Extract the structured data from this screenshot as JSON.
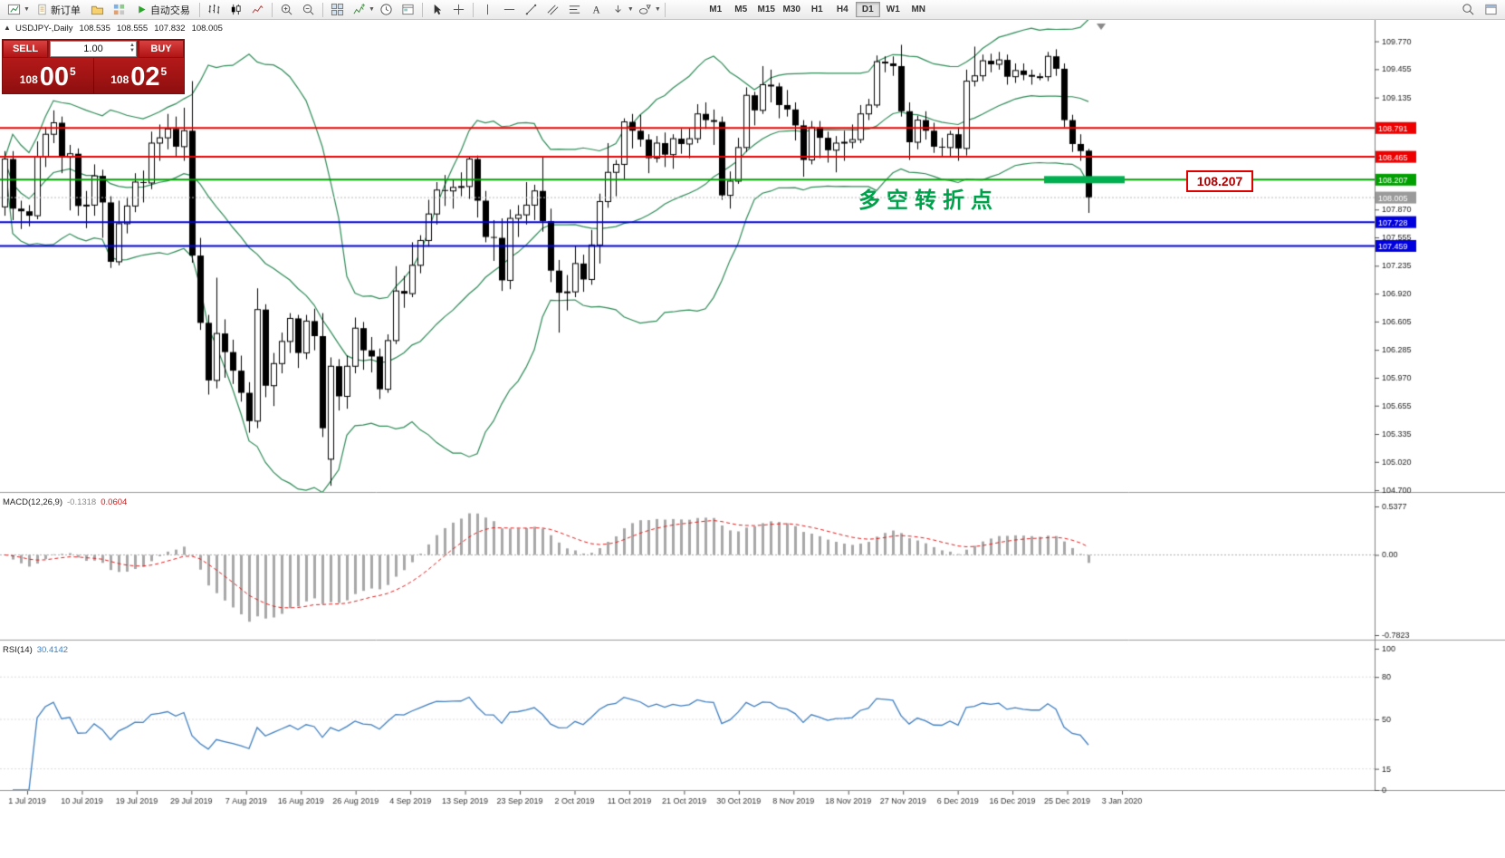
{
  "toolbar": {
    "new_order_label": "新订单",
    "autotrade_label": "自动交易",
    "timeframes": [
      "M1",
      "M5",
      "M15",
      "M30",
      "H1",
      "H4",
      "D1",
      "W1",
      "MN"
    ],
    "active_timeframe": "D1"
  },
  "chart_header": {
    "symbol": "USDJPY-,Daily",
    "open": "108.535",
    "high": "108.555",
    "low": "107.832",
    "close": "108.005"
  },
  "trade_panel": {
    "sell_label": "SELL",
    "buy_label": "BUY",
    "volume": "1.00",
    "sell_price": {
      "prefix": "108",
      "big": "00",
      "sup": "5"
    },
    "buy_price": {
      "prefix": "108",
      "big": "02",
      "sup": "5"
    }
  },
  "annotations": {
    "pivot_text": "多空转折点",
    "price_callout": "108.207"
  },
  "chart_data": {
    "type": "candlestick",
    "symbol": "USDJPY-",
    "timeframe": "Daily",
    "price_range": {
      "max": 109.95,
      "min": 104.68
    },
    "price_axis_ticks": [
      "109.770",
      "109.455",
      "109.135",
      "107.870",
      "107.555",
      "107.235",
      "106.920",
      "106.605",
      "106.285",
      "105.970",
      "105.655",
      "105.335",
      "105.020",
      "104.700"
    ],
    "levels": [
      {
        "price": 108.791,
        "label": "108.791",
        "color": "#ee0000",
        "width": 2
      },
      {
        "price": 108.465,
        "label": "108.465",
        "color": "#ee0000",
        "width": 2
      },
      {
        "price": 108.207,
        "label": "108.207",
        "color": "#00a000",
        "width": 2
      },
      {
        "price": 107.728,
        "label": "107.728",
        "color": "#0000dd",
        "width": 2
      },
      {
        "price": 107.459,
        "label": "107.459",
        "color": "#0000dd",
        "width": 2
      }
    ],
    "bid_line": {
      "price": 108.005,
      "label": "108.005",
      "color": "#9a9a9a"
    },
    "highlight_bar": {
      "price": 108.207,
      "start_index": 128,
      "end_index": 137,
      "color": "#00b050",
      "thickness": 8
    },
    "bollinger": {
      "period": 20,
      "deviation": 2
    },
    "styles": {
      "bollinger": "#2e8b57",
      "candle_up": "#ffffff",
      "candle_down": "#000000",
      "candle_border": "#000000",
      "macd_histogram": "#a8a8a8",
      "macd_signal": "#e02020",
      "rsi_line": "#3f7fc1"
    },
    "indicators": {
      "macd": {
        "label": "MACD(12,26,9)",
        "value": "-0.1318",
        "signal": "0.0604",
        "scale_max": "0.5377",
        "scale_zero": "0.00",
        "scale_min": "-0.7823",
        "range": {
          "max": 0.6,
          "min": -0.82
        }
      },
      "rsi": {
        "label": "RSI(14)",
        "value": "30.4142",
        "levels": [
          "100",
          "80",
          "50",
          "15",
          "0"
        ]
      }
    },
    "date_labels": [
      "1 Jul 2019",
      "10 Jul 2019",
      "19 Jul 2019",
      "29 Jul 2019",
      "7 Aug 2019",
      "16 Aug 2019",
      "26 Aug 2019",
      "4 Sep 2019",
      "13 Sep 2019",
      "23 Sep 2019",
      "2 Oct 2019",
      "11 Oct 2019",
      "21 Oct 2019",
      "30 Oct 2019",
      "8 Nov 2019",
      "18 Nov 2019",
      "27 Nov 2019",
      "6 Dec 2019",
      "16 Dec 2019",
      "25 Dec 2019",
      "3 Jan 2020"
    ],
    "candles": [
      [
        107.9,
        108.53,
        107.8,
        108.44
      ],
      [
        108.44,
        108.53,
        107.75,
        107.88
      ],
      [
        107.88,
        107.97,
        107.65,
        107.85
      ],
      [
        107.85,
        107.92,
        107.68,
        107.8
      ],
      [
        107.8,
        108.64,
        107.76,
        108.47
      ],
      [
        108.47,
        108.8,
        108.35,
        108.72
      ],
      [
        108.72,
        108.99,
        108.62,
        108.85
      ],
      [
        108.85,
        108.92,
        108.28,
        108.46
      ],
      [
        108.46,
        108.6,
        107.86,
        108.5
      ],
      [
        108.5,
        108.56,
        107.8,
        107.91
      ],
      [
        107.91,
        108.08,
        107.66,
        107.92
      ],
      [
        107.92,
        108.38,
        107.8,
        108.25
      ],
      [
        108.25,
        108.32,
        107.55,
        107.95
      ],
      [
        107.95,
        108.02,
        107.21,
        107.28
      ],
      [
        107.28,
        107.97,
        107.24,
        107.71
      ],
      [
        107.71,
        108.01,
        107.6,
        107.91
      ],
      [
        107.91,
        108.28,
        107.84,
        108.18
      ],
      [
        108.18,
        108.31,
        107.95,
        108.17
      ],
      [
        108.17,
        108.75,
        108.1,
        108.62
      ],
      [
        108.62,
        108.83,
        108.42,
        108.68
      ],
      [
        108.68,
        108.95,
        108.55,
        108.78
      ],
      [
        108.78,
        108.92,
        108.46,
        108.58
      ],
      [
        108.58,
        109.02,
        108.42,
        108.76
      ],
      [
        108.76,
        109.32,
        107.27,
        107.35
      ],
      [
        107.35,
        107.55,
        106.51,
        106.59
      ],
      [
        106.59,
        106.68,
        105.78,
        105.94
      ],
      [
        105.94,
        107.1,
        105.85,
        106.47
      ],
      [
        106.47,
        106.63,
        105.97,
        106.26
      ],
      [
        106.26,
        106.4,
        105.9,
        106.05
      ],
      [
        106.05,
        106.22,
        105.7,
        105.8
      ],
      [
        105.8,
        105.92,
        105.35,
        105.48
      ],
      [
        105.48,
        106.98,
        105.4,
        106.74
      ],
      [
        106.74,
        106.8,
        105.75,
        105.88
      ],
      [
        105.88,
        106.25,
        105.65,
        106.13
      ],
      [
        106.13,
        106.48,
        106.02,
        106.38
      ],
      [
        106.38,
        106.7,
        106.25,
        106.64
      ],
      [
        106.64,
        106.68,
        106.08,
        106.25
      ],
      [
        106.25,
        106.68,
        106.18,
        106.61
      ],
      [
        106.61,
        106.75,
        106.28,
        106.44
      ],
      [
        106.44,
        106.7,
        105.3,
        105.4
      ],
      [
        105.05,
        106.2,
        104.75,
        106.1
      ],
      [
        106.1,
        106.18,
        105.6,
        105.76
      ],
      [
        105.76,
        106.22,
        105.62,
        106.1
      ],
      [
        106.1,
        106.65,
        106.02,
        106.53
      ],
      [
        106.53,
        106.6,
        106.06,
        106.28
      ],
      [
        106.28,
        106.43,
        106.03,
        106.21
      ],
      [
        106.21,
        106.3,
        105.73,
        105.84
      ],
      [
        105.84,
        106.46,
        105.8,
        106.39
      ],
      [
        106.39,
        107.23,
        106.35,
        106.95
      ],
      [
        106.95,
        107.12,
        106.76,
        106.92
      ],
      [
        106.92,
        107.5,
        106.88,
        107.24
      ],
      [
        107.24,
        107.58,
        107.15,
        107.52
      ],
      [
        107.52,
        107.98,
        107.45,
        107.82
      ],
      [
        107.82,
        108.18,
        107.7,
        108.09
      ],
      [
        108.09,
        108.26,
        107.91,
        108.08
      ],
      [
        108.08,
        108.2,
        107.88,
        108.12
      ],
      [
        108.12,
        108.29,
        108.02,
        108.13
      ],
      [
        108.13,
        108.47,
        107.99,
        108.44
      ],
      [
        108.44,
        108.48,
        107.78,
        107.97
      ],
      [
        107.97,
        108.08,
        107.5,
        107.56
      ],
      [
        107.56,
        107.75,
        107.29,
        107.55
      ],
      [
        107.55,
        107.77,
        106.95,
        107.07
      ],
      [
        107.07,
        107.87,
        106.97,
        107.77
      ],
      [
        107.77,
        107.92,
        107.56,
        107.81
      ],
      [
        107.81,
        108.18,
        107.7,
        107.92
      ],
      [
        107.92,
        108.15,
        107.75,
        108.08
      ],
      [
        108.08,
        108.47,
        107.62,
        107.74
      ],
      [
        107.74,
        107.88,
        107.05,
        107.18
      ],
      [
        107.18,
        107.3,
        106.48,
        106.93
      ],
      [
        106.93,
        107.13,
        106.73,
        106.94
      ],
      [
        106.94,
        107.46,
        106.88,
        107.26
      ],
      [
        107.26,
        107.36,
        106.94,
        107.08
      ],
      [
        107.08,
        107.64,
        107.02,
        107.47
      ],
      [
        107.47,
        108.05,
        107.26,
        107.96
      ],
      [
        107.96,
        108.62,
        107.89,
        108.29
      ],
      [
        108.29,
        108.43,
        108.02,
        108.38
      ],
      [
        108.38,
        108.9,
        108.2,
        108.86
      ],
      [
        108.86,
        108.95,
        108.56,
        108.76
      ],
      [
        108.76,
        108.94,
        108.58,
        108.66
      ],
      [
        108.66,
        108.72,
        108.28,
        108.45
      ],
      [
        108.45,
        108.7,
        108.4,
        108.62
      ],
      [
        108.62,
        108.74,
        108.35,
        108.49
      ],
      [
        108.49,
        108.72,
        108.33,
        108.67
      ],
      [
        108.67,
        108.78,
        108.5,
        108.61
      ],
      [
        108.61,
        108.79,
        108.45,
        108.67
      ],
      [
        108.67,
        109.06,
        108.62,
        108.95
      ],
      [
        108.95,
        109.08,
        108.78,
        108.88
      ],
      [
        108.88,
        109.0,
        108.6,
        108.86
      ],
      [
        108.86,
        108.92,
        107.98,
        108.03
      ],
      [
        108.03,
        108.3,
        107.88,
        108.19
      ],
      [
        108.19,
        108.68,
        108.16,
        108.57
      ],
      [
        108.57,
        109.25,
        108.52,
        109.16
      ],
      [
        109.16,
        109.2,
        108.82,
        108.99
      ],
      [
        108.99,
        109.49,
        108.95,
        109.28
      ],
      [
        109.28,
        109.45,
        109.08,
        109.26
      ],
      [
        109.26,
        109.3,
        108.9,
        109.05
      ],
      [
        109.05,
        109.22,
        108.92,
        109.0
      ],
      [
        109.0,
        109.08,
        108.65,
        108.82
      ],
      [
        108.82,
        108.88,
        108.24,
        108.43
      ],
      [
        108.43,
        108.87,
        108.38,
        108.8
      ],
      [
        108.8,
        108.87,
        108.45,
        108.68
      ],
      [
        108.68,
        108.75,
        108.4,
        108.54
      ],
      [
        108.54,
        108.7,
        108.29,
        108.62
      ],
      [
        108.62,
        108.76,
        108.42,
        108.63
      ],
      [
        108.63,
        108.83,
        108.56,
        108.66
      ],
      [
        108.66,
        109.05,
        108.62,
        108.95
      ],
      [
        108.95,
        109.12,
        108.88,
        109.05
      ],
      [
        109.05,
        109.61,
        109.02,
        109.54
      ],
      [
        109.54,
        109.6,
        109.42,
        109.52
      ],
      [
        109.52,
        109.6,
        109.38,
        109.49
      ],
      [
        109.49,
        109.73,
        108.92,
        108.98
      ],
      [
        108.98,
        109.08,
        108.43,
        108.63
      ],
      [
        108.63,
        108.93,
        108.55,
        108.88
      ],
      [
        108.88,
        108.98,
        108.66,
        108.76
      ],
      [
        108.76,
        108.85,
        108.51,
        108.58
      ],
      [
        108.58,
        108.68,
        108.46,
        108.57
      ],
      [
        108.57,
        108.76,
        108.47,
        108.72
      ],
      [
        108.72,
        108.8,
        108.42,
        108.56
      ],
      [
        108.56,
        109.45,
        108.48,
        109.32
      ],
      [
        109.32,
        109.71,
        109.26,
        109.38
      ],
      [
        109.38,
        109.62,
        109.32,
        109.55
      ],
      [
        109.55,
        109.63,
        109.42,
        109.51
      ],
      [
        109.51,
        109.65,
        109.45,
        109.56
      ],
      [
        109.56,
        109.62,
        109.28,
        109.37
      ],
      [
        109.37,
        109.52,
        109.3,
        109.44
      ],
      [
        109.44,
        109.52,
        109.33,
        109.39
      ],
      [
        109.39,
        109.45,
        109.28,
        109.37
      ],
      [
        109.37,
        109.41,
        109.33,
        109.37
      ],
      [
        109.37,
        109.65,
        109.32,
        109.6
      ],
      [
        109.6,
        109.68,
        109.38,
        109.46
      ],
      [
        109.46,
        109.52,
        108.8,
        108.88
      ],
      [
        108.88,
        108.94,
        108.52,
        108.61
      ],
      [
        108.61,
        108.72,
        108.42,
        108.53
      ],
      [
        108.535,
        108.555,
        107.832,
        108.005
      ]
    ]
  }
}
